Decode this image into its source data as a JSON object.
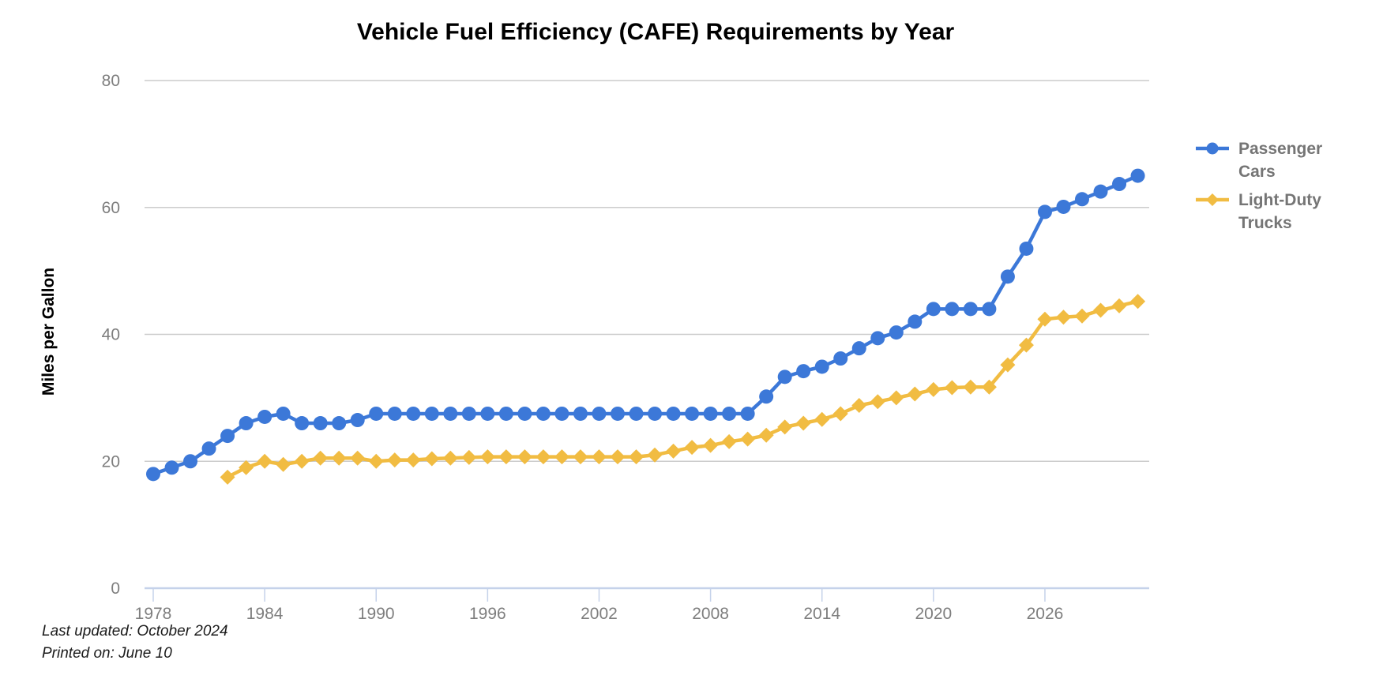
{
  "chart": {
    "title": "Vehicle Fuel Efficiency (CAFE) Requirements by Year",
    "y_axis_title": "Miles per Gallon",
    "footnote_line1": "Last updated: October 2024",
    "footnote_line2": "Printed on: June 10"
  },
  "legend": {
    "items": [
      {
        "label": "Passenger Cars",
        "marker": "circle",
        "color": "#3C78D8"
      },
      {
        "label": "Light-Duty Trucks",
        "marker": "diamond",
        "color": "#F1BC42"
      }
    ]
  },
  "colors": {
    "gridline": "#CCCCCC",
    "axis_line": "#C5D2EA",
    "tick_label": "#7E7E7E",
    "series_blue": "#3C78D8",
    "series_yellow": "#F1BC42"
  },
  "chart_data": {
    "type": "line",
    "title": "Vehicle Fuel Efficiency (CAFE) Requirements by Year",
    "xlabel": "",
    "ylabel": "Miles per Gallon",
    "ylim": [
      0,
      85
    ],
    "xlim": [
      1976.8,
      2031.6
    ],
    "y_ticks": [
      0,
      20,
      40,
      60,
      80
    ],
    "x_ticks": [
      1978,
      1984,
      1990,
      1996,
      2002,
      2008,
      2014,
      2020,
      2026
    ],
    "grid": true,
    "legend_position": "right",
    "series": [
      {
        "name": "Passenger Cars",
        "color": "#3C78D8",
        "marker": "circle",
        "x": [
          1978,
          1979,
          1980,
          1981,
          1982,
          1983,
          1984,
          1985,
          1986,
          1987,
          1988,
          1989,
          1990,
          1991,
          1992,
          1993,
          1994,
          1995,
          1996,
          1997,
          1998,
          1999,
          2000,
          2001,
          2002,
          2003,
          2004,
          2005,
          2006,
          2007,
          2008,
          2009,
          2010,
          2011,
          2012,
          2013,
          2014,
          2015,
          2016,
          2017,
          2018,
          2019,
          2020,
          2021,
          2022,
          2023,
          2024,
          2025,
          2026,
          2027,
          2028,
          2029,
          2030,
          2031
        ],
        "values": [
          18,
          19,
          20,
          22,
          24,
          26,
          27,
          27.5,
          26,
          26,
          26,
          26.5,
          27.5,
          27.5,
          27.5,
          27.5,
          27.5,
          27.5,
          27.5,
          27.5,
          27.5,
          27.5,
          27.5,
          27.5,
          27.5,
          27.5,
          27.5,
          27.5,
          27.5,
          27.5,
          27.5,
          27.5,
          27.5,
          30.2,
          33.3,
          34.2,
          34.9,
          36.2,
          37.8,
          39.4,
          40.3,
          42,
          44,
          44,
          44,
          44,
          49.1,
          53.5,
          59.3,
          60.1,
          61.3,
          62.5,
          63.7,
          65
        ]
      },
      {
        "name": "Light-Duty Trucks",
        "color": "#F1BC42",
        "marker": "diamond",
        "x": [
          1982,
          1983,
          1984,
          1985,
          1986,
          1987,
          1988,
          1989,
          1990,
          1991,
          1992,
          1993,
          1994,
          1995,
          1996,
          1997,
          1998,
          1999,
          2000,
          2001,
          2002,
          2003,
          2004,
          2005,
          2006,
          2007,
          2008,
          2009,
          2010,
          2011,
          2012,
          2013,
          2014,
          2015,
          2016,
          2017,
          2018,
          2019,
          2020,
          2021,
          2022,
          2023,
          2024,
          2025,
          2026,
          2027,
          2028,
          2029,
          2030,
          2031
        ],
        "values": [
          17.5,
          19,
          20,
          19.5,
          20,
          20.5,
          20.5,
          20.5,
          20,
          20.2,
          20.2,
          20.4,
          20.5,
          20.6,
          20.7,
          20.7,
          20.7,
          20.7,
          20.7,
          20.7,
          20.7,
          20.7,
          20.7,
          21,
          21.6,
          22.2,
          22.5,
          23.1,
          23.5,
          24.1,
          25.4,
          26,
          26.6,
          27.5,
          28.8,
          29.4,
          30,
          30.6,
          31.3,
          31.6,
          31.7,
          31.7,
          35.2,
          38.3,
          42.4,
          42.7,
          42.9,
          43.8,
          44.5,
          45.2
        ]
      }
    ]
  }
}
